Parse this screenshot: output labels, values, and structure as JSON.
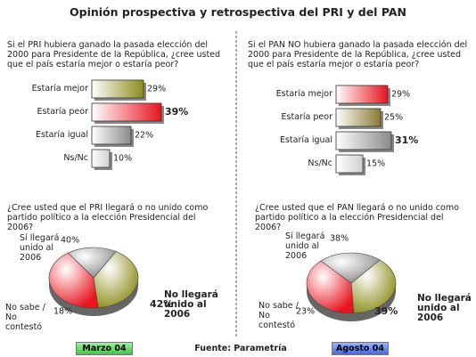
{
  "title": "Opinión prospectiva y retrospectiva del PRI y del PAN",
  "chart_data": [
    {
      "type": "bar",
      "title": "Si el PRI hubiera ganado la pasada elección del 2000 para Presidente de la República, ¿cree usted que el país estaría mejor o estaría peor?",
      "categories": [
        "Estaría mejor",
        "Estaría peor",
        "Estaría igual",
        "Ns/Nc"
      ],
      "values": [
        29,
        39,
        22,
        10
      ],
      "value_labels": [
        "29%",
        "39%",
        "22%",
        "10%"
      ],
      "colors": [
        "#8c8c1a",
        "#e8141e",
        "#8a8a8a",
        "#cfcfcf"
      ]
    },
    {
      "type": "bar",
      "title": "Si el PAN NO hubiera ganado la pasada elección del 2000 para Presidente de la República, ¿cree usted que el país estaría mejor o estaría peor?",
      "categories": [
        "Estaría mejor",
        "Estaría peor",
        "Estaría igual",
        "Ns/Nc"
      ],
      "values": [
        29,
        25,
        31,
        15
      ],
      "value_labels": [
        "29%",
        "25%",
        "31%",
        "15%"
      ],
      "colors": [
        "#e8141e",
        "#8a7a30",
        "#8a8a8a",
        "#cfcfcf"
      ]
    },
    {
      "type": "pie",
      "title": "¿Cree usted que el PRI llegará o no unido como partido político a la elección Presidencial del 2006?",
      "categories": [
        "Sí llegará unido al 2006",
        "No llegará unido al 2006",
        "No sabe / No contestó"
      ],
      "values": [
        40,
        42,
        18
      ],
      "value_labels": [
        "40%",
        "42%",
        "18%"
      ],
      "colors": [
        "#8c8c1a",
        "#e8141e",
        "#8a8a8a"
      ]
    },
    {
      "type": "pie",
      "title": "¿Cree usted que el PAN llegará o no unido como partido político a la elección Presidencial del 2006?",
      "categories": [
        "Sí llegará unido al 2006",
        "No llegará unido al 2006",
        "No sabe / No contestó"
      ],
      "values": [
        38,
        39,
        23
      ],
      "value_labels": [
        "38%",
        "39%",
        "23%"
      ],
      "colors": [
        "#8c8c1a",
        "#e8141e",
        "#8a8a8a"
      ]
    }
  ],
  "footer": {
    "left": "Marzo 04",
    "source": "Fuente: Parametría",
    "right": "Agosto 04"
  }
}
